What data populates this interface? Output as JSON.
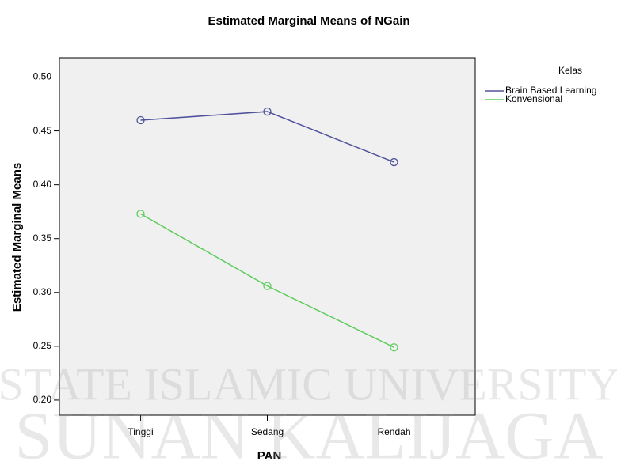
{
  "chart_data": {
    "type": "line",
    "title": "Estimated Marginal Means of NGain",
    "x_label": "PAN",
    "y_label": "Estimated Marginal Means",
    "legend_title": "Kelas",
    "legend": "right",
    "categories": [
      "Tinggi",
      "Sedang",
      "Rendah"
    ],
    "series": [
      {
        "name": "Brain Based Learning",
        "color": "#50539c",
        "values": [
          0.46,
          0.468,
          0.421
        ]
      },
      {
        "name": "Konvensional",
        "color": "#5ccc5c",
        "values": [
          0.373,
          0.306,
          0.249
        ]
      }
    ],
    "ylim": [
      0.186,
      0.518
    ],
    "yticks": [
      {
        "value": 0.2,
        "label": "0.20"
      },
      0.25,
      {
        "value": 0.3,
        "label": "0.30"
      },
      0.35,
      {
        "value": 0.4,
        "label": "0.40"
      },
      0.45,
      {
        "value": 0.5,
        "label": "0.50"
      }
    ],
    "watermark": [
      "STATE ISLAMIC UNIVERSITY",
      "SUNAN KALIJAGA"
    ]
  }
}
